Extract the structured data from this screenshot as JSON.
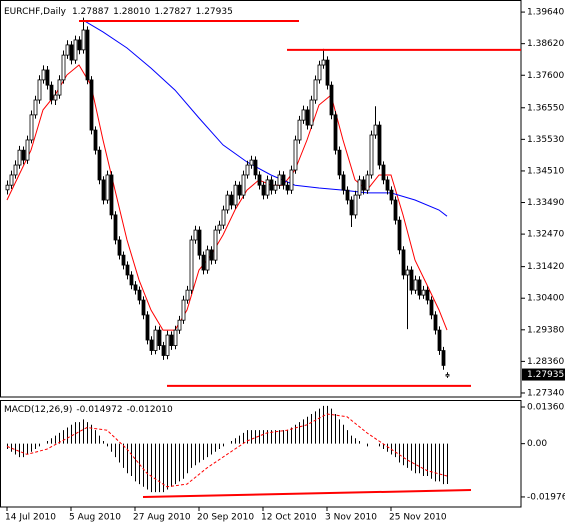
{
  "chart_data": [
    {
      "type": "candlestick",
      "title": "EURCHF,Daily",
      "title_values": [
        "1.27887",
        "1.28010",
        "1.27827",
        "1.27935"
      ],
      "up_color": "#ffffff",
      "down_color": "#000000",
      "candles": [
        [
          1.339,
          1.342,
          1.3375,
          1.3405
        ],
        [
          1.3405,
          1.3452,
          1.3393,
          1.3438
        ],
        [
          1.3438,
          1.3485,
          1.3426,
          1.347
        ],
        [
          1.347,
          1.3532,
          1.3458,
          1.3518
        ],
        [
          1.3518,
          1.353,
          1.3472,
          1.3486
        ],
        [
          1.3486,
          1.3565,
          1.3474,
          1.3551
        ],
        [
          1.3551,
          1.3646,
          1.354,
          1.3632
        ],
        [
          1.3632,
          1.3694,
          1.362,
          1.368
        ],
        [
          1.368,
          1.376,
          1.3668,
          1.3745
        ],
        [
          1.3745,
          1.3792,
          1.3733,
          1.3777
        ],
        [
          1.3777,
          1.379,
          1.3714,
          1.3728
        ],
        [
          1.3728,
          1.374,
          1.3666,
          1.368
        ],
        [
          1.368,
          1.3712,
          1.3664,
          1.3696
        ],
        [
          1.3696,
          1.376,
          1.3684,
          1.3745
        ],
        [
          1.3745,
          1.384,
          1.3733,
          1.3825
        ],
        [
          1.3825,
          1.3873,
          1.3813,
          1.3858
        ],
        [
          1.3858,
          1.387,
          1.3795,
          1.3809
        ],
        [
          1.3809,
          1.3888,
          1.3797,
          1.3874
        ],
        [
          1.3874,
          1.3886,
          1.3828,
          1.3842
        ],
        [
          1.3842,
          1.3946,
          1.383,
          1.3906
        ],
        [
          1.3906,
          1.3918,
          1.3731,
          1.3745
        ],
        [
          1.3745,
          1.3757,
          1.3569,
          1.3583
        ],
        [
          1.3583,
          1.3595,
          1.3504,
          1.3518
        ],
        [
          1.3518,
          1.353,
          1.3408,
          1.3422
        ],
        [
          1.3422,
          1.3434,
          1.3343,
          1.3357
        ],
        [
          1.3357,
          1.3452,
          1.3345,
          1.3438
        ],
        [
          1.3438,
          1.345,
          1.3295,
          1.3309
        ],
        [
          1.3309,
          1.3321,
          1.3214,
          1.3228
        ],
        [
          1.3228,
          1.324,
          1.3165,
          1.3179
        ],
        [
          1.3179,
          1.3191,
          1.3133,
          1.3147
        ],
        [
          1.3147,
          1.3159,
          1.3101,
          1.3115
        ],
        [
          1.3115,
          1.3127,
          1.3069,
          1.3083
        ],
        [
          1.3083,
          1.3095,
          1.3052,
          1.3066
        ],
        [
          1.3066,
          1.3078,
          1.302,
          1.3034
        ],
        [
          1.3034,
          1.3046,
          1.2972,
          1.2986
        ],
        [
          1.2986,
          1.2998,
          1.2891,
          1.2905
        ],
        [
          1.2905,
          1.2917,
          1.2857,
          1.2871
        ],
        [
          1.2871,
          1.2951,
          1.2859,
          1.2937
        ],
        [
          1.2937,
          1.2949,
          1.2873,
          1.2887
        ],
        [
          1.2887,
          1.2899,
          1.2841,
          1.2855
        ],
        [
          1.2855,
          1.2935,
          1.2843,
          1.2921
        ],
        [
          1.2921,
          1.2933,
          1.2873,
          1.2887
        ],
        [
          1.2887,
          1.2951,
          1.2875,
          1.2937
        ],
        [
          1.2937,
          1.2983,
          1.2925,
          1.2969
        ],
        [
          1.2969,
          1.3048,
          1.2957,
          1.3034
        ],
        [
          1.3034,
          1.308,
          1.3022,
          1.3066
        ],
        [
          1.3066,
          1.3242,
          1.3054,
          1.3228
        ],
        [
          1.3228,
          1.3274,
          1.3216,
          1.326
        ],
        [
          1.326,
          1.3272,
          1.3165,
          1.3179
        ],
        [
          1.3179,
          1.3191,
          1.3117,
          1.3131
        ],
        [
          1.3131,
          1.321,
          1.3119,
          1.3196
        ],
        [
          1.3196,
          1.3208,
          1.3149,
          1.3163
        ],
        [
          1.3163,
          1.3274,
          1.3151,
          1.326
        ],
        [
          1.326,
          1.329,
          1.3248,
          1.3276
        ],
        [
          1.3276,
          1.3339,
          1.3264,
          1.3325
        ],
        [
          1.3325,
          1.3387,
          1.3313,
          1.3373
        ],
        [
          1.3373,
          1.3385,
          1.3327,
          1.3341
        ],
        [
          1.3341,
          1.3419,
          1.3329,
          1.3405
        ],
        [
          1.3405,
          1.3417,
          1.3359,
          1.3373
        ],
        [
          1.3373,
          1.3452,
          1.3361,
          1.3438
        ],
        [
          1.3438,
          1.3484,
          1.3426,
          1.347
        ],
        [
          1.347,
          1.35,
          1.3458,
          1.3486
        ],
        [
          1.3486,
          1.3498,
          1.3424,
          1.3438
        ],
        [
          1.3438,
          1.345,
          1.3391,
          1.3405
        ],
        [
          1.3405,
          1.3417,
          1.3359,
          1.3373
        ],
        [
          1.3373,
          1.3436,
          1.3361,
          1.3422
        ],
        [
          1.3422,
          1.3434,
          1.3375,
          1.3389
        ],
        [
          1.3389,
          1.3419,
          1.3377,
          1.3405
        ],
        [
          1.3405,
          1.3452,
          1.3393,
          1.3438
        ],
        [
          1.3438,
          1.345,
          1.3391,
          1.3405
        ],
        [
          1.3405,
          1.3417,
          1.3375,
          1.3389
        ],
        [
          1.3389,
          1.3468,
          1.3377,
          1.3454
        ],
        [
          1.3454,
          1.3565,
          1.3442,
          1.3551
        ],
        [
          1.3551,
          1.3629,
          1.3539,
          1.3615
        ],
        [
          1.3615,
          1.3662,
          1.3603,
          1.3648
        ],
        [
          1.3648,
          1.366,
          1.3585,
          1.3599
        ],
        [
          1.3599,
          1.3694,
          1.3587,
          1.368
        ],
        [
          1.368,
          1.3759,
          1.3668,
          1.3745
        ],
        [
          1.3745,
          1.3807,
          1.3733,
          1.3793
        ],
        [
          1.3793,
          1.3845,
          1.3781,
          1.3809
        ],
        [
          1.3809,
          1.3821,
          1.3714,
          1.3728
        ],
        [
          1.3728,
          1.374,
          1.3618,
          1.3632
        ],
        [
          1.3632,
          1.3644,
          1.3504,
          1.3518
        ],
        [
          1.3518,
          1.353,
          1.3424,
          1.3438
        ],
        [
          1.3438,
          1.345,
          1.3375,
          1.3389
        ],
        [
          1.3389,
          1.3401,
          1.3343,
          1.3357
        ],
        [
          1.3357,
          1.3369,
          1.327,
          1.3309
        ],
        [
          1.3309,
          1.3387,
          1.3297,
          1.3373
        ],
        [
          1.3373,
          1.3436,
          1.3361,
          1.3422
        ],
        [
          1.3422,
          1.3434,
          1.3375,
          1.3389
        ],
        [
          1.3389,
          1.3452,
          1.3377,
          1.3438
        ],
        [
          1.3438,
          1.3581,
          1.3426,
          1.3567
        ],
        [
          1.3567,
          1.366,
          1.3555,
          1.3599
        ],
        [
          1.3599,
          1.3611,
          1.3456,
          1.347
        ],
        [
          1.347,
          1.3482,
          1.3408,
          1.3422
        ],
        [
          1.3422,
          1.3434,
          1.3375,
          1.3389
        ],
        [
          1.3389,
          1.3401,
          1.3343,
          1.3357
        ],
        [
          1.3357,
          1.3369,
          1.3278,
          1.3292
        ],
        [
          1.3292,
          1.3304,
          1.3182,
          1.3196
        ],
        [
          1.3196,
          1.3208,
          1.3101,
          1.3115
        ],
        [
          1.3115,
          1.3145,
          1.294,
          1.3131
        ],
        [
          1.3131,
          1.3143,
          1.3052,
          1.3066
        ],
        [
          1.3066,
          1.3113,
          1.3054,
          1.3099
        ],
        [
          1.3099,
          1.3111,
          1.3036,
          1.305
        ],
        [
          1.305,
          1.308,
          1.3038,
          1.3066
        ],
        [
          1.3066,
          1.3078,
          1.302,
          1.3034
        ],
        [
          1.3034,
          1.3046,
          1.2972,
          1.2986
        ],
        [
          1.2986,
          1.2998,
          1.2923,
          1.2937
        ],
        [
          1.2937,
          1.2949,
          1.2857,
          1.2871
        ],
        [
          1.2871,
          1.2883,
          1.2809,
          1.2823
        ],
        [
          1.27887,
          1.2801,
          1.27827,
          1.27935
        ]
      ],
      "lines": [
        {
          "color": "#ff0000",
          "x": [
            0,
            3,
            6,
            9,
            12,
            15,
            18,
            21,
            24,
            27,
            30,
            33,
            36,
            39,
            42,
            45,
            48,
            51,
            54,
            57,
            60,
            63,
            66,
            69,
            72,
            75,
            78,
            81,
            84,
            87,
            90,
            93,
            96,
            99,
            102,
            105,
            108,
            110
          ],
          "values": [
            1.3357,
            1.3438,
            1.3518,
            1.3648,
            1.3696,
            1.3761,
            1.3793,
            1.3728,
            1.3551,
            1.3389,
            1.3228,
            1.3099,
            1.3002,
            1.2937,
            1.2937,
            1.3002,
            1.3131,
            1.3179,
            1.3244,
            1.3325,
            1.3389,
            1.3422,
            1.3405,
            1.3405,
            1.3454,
            1.3551,
            1.3664,
            1.3696,
            1.3551,
            1.3422,
            1.3389,
            1.3438,
            1.3438,
            1.3309,
            1.3163,
            1.3083,
            1.3002,
            1.2937
          ]
        },
        {
          "color": "#0000ff",
          "x": [
            19,
            24,
            30,
            36,
            42,
            48,
            54,
            60,
            66,
            72,
            78,
            84,
            90,
            96,
            102,
            108,
            110
          ],
          "values": [
            1.3938,
            1.39,
            1.3848,
            1.3783,
            1.3712,
            1.3622,
            1.3535,
            1.348,
            1.3438,
            1.3405,
            1.3396,
            1.3389,
            1.338,
            1.338,
            1.3357,
            1.3325,
            1.3305
          ]
        }
      ],
      "trendlines": [
        {
          "color": "#ff0000",
          "x": [
            18,
            73
          ],
          "values": [
            1.3935,
            1.3935
          ]
        },
        {
          "color": "#ff0000",
          "x": [
            70,
            130
          ],
          "values": [
            1.3842,
            1.3842
          ]
        },
        {
          "color": "#ff0000",
          "x": [
            40,
            116
          ],
          "values": [
            1.2757,
            1.2757
          ]
        }
      ],
      "ylim": [
        1.2721,
        1.4003
      ],
      "yticks": [
        {
          "value": 1.3964,
          "label": "1.39640"
        },
        {
          "value": 1.3862,
          "label": "1.38620"
        },
        {
          "value": 1.376,
          "label": "1.37600"
        },
        {
          "value": 1.3655,
          "label": "1.36550"
        },
        {
          "value": 1.3553,
          "label": "1.35530"
        },
        {
          "value": 1.3451,
          "label": "1.34510"
        },
        {
          "value": 1.3349,
          "label": "1.33490"
        },
        {
          "value": 1.3247,
          "label": "1.32470"
        },
        {
          "value": 1.3142,
          "label": "1.31420"
        },
        {
          "value": 1.304,
          "label": "1.30400"
        },
        {
          "value": 1.2938,
          "label": "1.29380"
        },
        {
          "value": 1.2836,
          "label": "1.28360"
        },
        {
          "value": 1.2734,
          "label": "1.27340"
        }
      ],
      "current_price": {
        "value": 1.27935,
        "label": "1.27935"
      }
    },
    {
      "type": "macd",
      "title": "MACD(12,26,9)",
      "title_values": [
        "-0.014972",
        "-0.012010"
      ],
      "color": "#000000",
      "values": [
        -0.002,
        -0.003,
        -0.004,
        -0.005,
        -0.005,
        -0.004,
        -0.003,
        -0.002,
        -0.001,
        0.0,
        0.001,
        0.002,
        0.003,
        0.004,
        0.005,
        0.006,
        0.007,
        0.008,
        0.008,
        0.009,
        0.008,
        0.007,
        0.005,
        0.003,
        0.001,
        -0.001,
        -0.003,
        -0.005,
        -0.007,
        -0.009,
        -0.011,
        -0.012,
        -0.014,
        -0.015,
        -0.016,
        -0.017,
        -0.018,
        -0.018,
        -0.018,
        -0.018,
        -0.017,
        -0.016,
        -0.015,
        -0.014,
        -0.013,
        -0.011,
        -0.009,
        -0.008,
        -0.007,
        -0.006,
        -0.005,
        -0.004,
        -0.003,
        -0.002,
        -0.001,
        0.0,
        0.001,
        0.002,
        0.003,
        0.004,
        0.005,
        0.005,
        0.005,
        0.005,
        0.005,
        0.005,
        0.005,
        0.005,
        0.005,
        0.005,
        0.005,
        0.006,
        0.007,
        0.008,
        0.009,
        0.01,
        0.011,
        0.012,
        0.013,
        0.014,
        0.014,
        0.013,
        0.011,
        0.009,
        0.007,
        0.005,
        0.003,
        0.002,
        0.001,
        0.0,
        -0.001,
        0.0,
        0.0,
        -0.001,
        -0.002,
        -0.003,
        -0.004,
        -0.005,
        -0.007,
        -0.008,
        -0.009,
        -0.01,
        -0.011,
        -0.011,
        -0.012,
        -0.012,
        -0.013,
        -0.014,
        -0.014,
        -0.015,
        -0.014972
      ],
      "signal": {
        "color": "#ff0000",
        "x": [
          0,
          5,
          10,
          15,
          20,
          25,
          30,
          35,
          40,
          45,
          50,
          55,
          60,
          65,
          70,
          75,
          80,
          85,
          90,
          95,
          100,
          105,
          110
        ],
        "values": [
          -0.001,
          -0.004,
          -0.002,
          0.002,
          0.006,
          0.005,
          -0.002,
          -0.011,
          -0.016,
          -0.015,
          -0.009,
          -0.004,
          0.001,
          0.004,
          0.005,
          0.007,
          0.011,
          0.01,
          0.004,
          -0.001,
          -0.006,
          -0.01,
          -0.01201
        ]
      },
      "trendlines": [
        {
          "color": "#ff0000",
          "x": [
            34,
            116
          ],
          "values": [
            -0.0198,
            -0.0172
          ]
        }
      ],
      "ylim": [
        -0.0235,
        0.0162
      ],
      "yticks": [
        0.013602,
        {
          "value": 0,
          "label": "0.00"
        },
        -0.019765
      ],
      "categories": [
        "14 Jul 2010",
        null,
        null,
        null,
        null,
        null,
        null,
        null,
        null,
        null,
        null,
        null,
        null,
        null,
        null,
        null,
        "5 Aug 2010",
        null,
        null,
        null,
        null,
        null,
        null,
        null,
        null,
        null,
        null,
        null,
        null,
        null,
        null,
        null,
        "27 Aug 2010",
        null,
        null,
        null,
        null,
        null,
        null,
        null,
        null,
        null,
        null,
        null,
        null,
        null,
        null,
        null,
        "20 Sep 2010",
        null,
        null,
        null,
        null,
        null,
        null,
        null,
        null,
        null,
        null,
        null,
        null,
        null,
        null,
        null,
        "12 Oct 2010",
        null,
        null,
        null,
        null,
        null,
        null,
        null,
        null,
        null,
        null,
        null,
        null,
        null,
        null,
        null,
        "3 Nov 2010",
        null,
        null,
        null,
        null,
        null,
        null,
        null,
        null,
        null,
        null,
        null,
        null,
        null,
        null,
        null,
        "25 Nov 2010",
        null,
        null,
        null,
        null,
        null,
        null,
        null,
        null,
        null,
        null,
        null,
        null,
        null,
        null
      ]
    }
  ]
}
